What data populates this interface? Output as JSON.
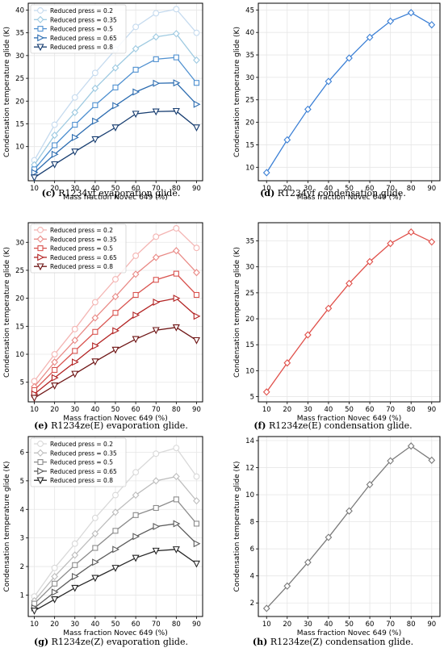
{
  "chart_data": [
    {
      "type": "line",
      "panel": "(c)",
      "caption": {
        "letter": "(c)",
        "text": "R1234yf evaporation glide."
      },
      "xlabel": "Mass fraction Novec 649 (%)",
      "ylabel": "Condensation temperature glide (K)",
      "x": [
        10,
        20,
        30,
        40,
        50,
        60,
        70,
        80,
        90
      ],
      "xlim": [
        7,
        93
      ],
      "ylim": [
        2.5,
        41.5
      ],
      "xticks": [
        10,
        20,
        30,
        40,
        50,
        60,
        70,
        80,
        90
      ],
      "yticks": [
        10,
        15,
        20,
        25,
        30,
        35,
        40
      ],
      "legend": "top-left",
      "grid": true,
      "marker_style": "mixed",
      "series": [
        {
          "name": "Reduced press = 0.2",
          "color": "#c6dbef",
          "marker": "o",
          "values": [
            7.0,
            14.8,
            20.8,
            26.2,
            31.3,
            36.3,
            39.3,
            40.2,
            35.0
          ]
        },
        {
          "name": "Reduced press = 0.35",
          "color": "#9ecae1",
          "marker": "D",
          "values": [
            6.0,
            12.5,
            17.5,
            22.8,
            27.3,
            31.5,
            34.1,
            34.8,
            29.0
          ]
        },
        {
          "name": "Reduced press = 0.5",
          "color": "#4f90d0",
          "marker": "s",
          "values": [
            5.0,
            10.3,
            14.8,
            19.1,
            23.0,
            26.9,
            29.2,
            29.6,
            24.0
          ]
        },
        {
          "name": "Reduced press = 0.65",
          "color": "#2c6cb0",
          "marker": ">",
          "values": [
            4.3,
            8.3,
            12.0,
            15.6,
            19.0,
            22.0,
            23.9,
            24.0,
            19.3
          ]
        },
        {
          "name": "Reduced press = 0.8",
          "color": "#173d70",
          "marker": "v",
          "values": [
            3.2,
            6.1,
            8.9,
            11.6,
            14.2,
            17.2,
            17.7,
            17.8,
            14.2
          ]
        }
      ]
    },
    {
      "type": "line",
      "panel": "(d)",
      "caption": {
        "letter": "(d)",
        "text": "R1234yf condensation glide."
      },
      "xlabel": "Mass fraction Novec 649 (%)",
      "ylabel": "Condensation temperature glide (K)",
      "x": [
        10,
        20,
        30,
        40,
        50,
        60,
        70,
        80,
        90
      ],
      "xlim": [
        6,
        94
      ],
      "ylim": [
        7.0,
        46.5
      ],
      "xticks": [
        10,
        20,
        30,
        40,
        50,
        60,
        70,
        80,
        90
      ],
      "yticks": [
        10,
        15,
        20,
        25,
        30,
        35,
        40,
        45
      ],
      "grid": true,
      "marker_style": "single",
      "series": [
        {
          "color": "#3a7fd5",
          "marker": "D",
          "values": [
            8.8,
            16.1,
            22.9,
            29.1,
            34.3,
            38.9,
            42.5,
            44.4,
            41.7
          ]
        }
      ]
    },
    {
      "type": "line",
      "panel": "(e)",
      "caption": {
        "letter": "(e)",
        "text": "R1234ze(E) evaporation glide."
      },
      "xlabel": "Mass fraction Novec 649 (%)",
      "ylabel": "Condensation temperature glide (K)",
      "x": [
        10,
        20,
        30,
        40,
        50,
        60,
        70,
        80,
        90
      ],
      "xlim": [
        7,
        93
      ],
      "ylim": [
        1.5,
        33.5
      ],
      "xticks": [
        10,
        20,
        30,
        40,
        50,
        60,
        70,
        80,
        90
      ],
      "yticks": [
        5,
        10,
        15,
        20,
        25,
        30
      ],
      "legend": "top-left",
      "grid": true,
      "marker_style": "mixed",
      "series": [
        {
          "name": "Reduced press = 0.2",
          "color": "#f4b5b3",
          "marker": "o",
          "values": [
            5.2,
            10.0,
            14.5,
            19.3,
            23.4,
            27.6,
            31.0,
            32.5,
            29.0
          ]
        },
        {
          "name": "Reduced press = 0.35",
          "color": "#e98a86",
          "marker": "D",
          "values": [
            4.2,
            8.6,
            12.5,
            16.5,
            20.3,
            24.3,
            27.3,
            28.5,
            24.6
          ]
        },
        {
          "name": "Reduced press = 0.5",
          "color": "#d9534f",
          "marker": "s",
          "values": [
            3.6,
            7.2,
            10.6,
            14.0,
            17.4,
            20.6,
            23.3,
            24.4,
            20.6
          ]
        },
        {
          "name": "Reduced press = 0.65",
          "color": "#b22222",
          "marker": ">",
          "values": [
            2.9,
            5.8,
            8.6,
            11.5,
            14.2,
            17.0,
            19.3,
            20.0,
            16.8
          ]
        },
        {
          "name": "Reduced press = 0.8",
          "color": "#6e1414",
          "marker": "v",
          "values": [
            2.2,
            4.4,
            6.5,
            8.7,
            10.8,
            12.7,
            14.3,
            14.8,
            12.5
          ]
        }
      ]
    },
    {
      "type": "line",
      "panel": "(f)",
      "caption": {
        "letter": "(f)",
        "text": "R1234ze(E) condensation glide."
      },
      "xlabel": "Mass fraction Novec 649 (%)",
      "ylabel": "Condensation temperature glide (K)",
      "x": [
        10,
        20,
        30,
        40,
        50,
        60,
        70,
        80,
        90
      ],
      "xlim": [
        6,
        94
      ],
      "ylim": [
        4.0,
        38.5
      ],
      "xticks": [
        10,
        20,
        30,
        40,
        50,
        60,
        70,
        80,
        90
      ],
      "yticks": [
        5,
        10,
        15,
        20,
        25,
        30,
        35
      ],
      "grid": true,
      "marker_style": "single",
      "series": [
        {
          "color": "#e0504a",
          "marker": "D",
          "values": [
            5.9,
            11.5,
            16.9,
            22.0,
            26.8,
            31.0,
            34.5,
            36.7,
            34.8
          ]
        }
      ]
    },
    {
      "type": "line",
      "panel": "(g)",
      "caption": {
        "letter": "(g)",
        "text": "R1234ze(Z) evaporation glide."
      },
      "xlabel": "Mass fraction Novec 649 (%)",
      "ylabel": "Condensation temperature glide (K)",
      "x": [
        10,
        20,
        30,
        40,
        50,
        60,
        70,
        80,
        90
      ],
      "xlim": [
        7,
        93
      ],
      "ylim": [
        0.25,
        6.55
      ],
      "xticks": [
        10,
        20,
        30,
        40,
        50,
        60,
        70,
        80,
        90
      ],
      "yticks": [
        1,
        2,
        3,
        4,
        5,
        6
      ],
      "legend": "top-left",
      "grid": true,
      "marker_style": "mixed",
      "series": [
        {
          "name": "Reduced press = 0.2",
          "color": "#d9d9d9",
          "marker": "o",
          "values": [
            0.95,
            1.95,
            2.8,
            3.7,
            4.5,
            5.3,
            5.95,
            6.15,
            5.15
          ]
        },
        {
          "name": "Reduced press = 0.35",
          "color": "#bdbdbd",
          "marker": "D",
          "values": [
            0.8,
            1.65,
            2.4,
            3.15,
            3.9,
            4.5,
            5.0,
            5.15,
            4.3
          ]
        },
        {
          "name": "Reduced press = 0.5",
          "color": "#8c8c8c",
          "marker": "s",
          "values": [
            0.7,
            1.4,
            2.05,
            2.65,
            3.25,
            3.8,
            4.05,
            4.35,
            3.5
          ]
        },
        {
          "name": "Reduced press = 0.65",
          "color": "#5c5c5c",
          "marker": ">",
          "values": [
            0.55,
            1.1,
            1.65,
            2.15,
            2.6,
            3.05,
            3.4,
            3.5,
            2.8
          ]
        },
        {
          "name": "Reduced press = 0.8",
          "color": "#262626",
          "marker": "v",
          "values": [
            0.45,
            0.85,
            1.25,
            1.6,
            1.95,
            2.3,
            2.55,
            2.6,
            2.1
          ]
        }
      ]
    },
    {
      "type": "line",
      "panel": "(h)",
      "caption": {
        "letter": "(h)",
        "text": "R1234ze(Z) condensation glide."
      },
      "xlabel": "Mass fraction Novec 649 (%)",
      "ylabel": "Condensation temperature glide (K)",
      "x": [
        10,
        20,
        30,
        40,
        50,
        60,
        70,
        80,
        90
      ],
      "xlim": [
        6,
        94
      ],
      "ylim": [
        1.0,
        14.3
      ],
      "xticks": [
        10,
        20,
        30,
        40,
        50,
        60,
        70,
        80,
        90
      ],
      "yticks": [
        2,
        4,
        6,
        8,
        10,
        12,
        14
      ],
      "grid": true,
      "marker_style": "single",
      "series": [
        {
          "color": "#7a7a7a",
          "marker": "D",
          "values": [
            1.6,
            3.25,
            5.0,
            6.85,
            8.8,
            10.75,
            12.5,
            13.6,
            12.55
          ]
        }
      ]
    }
  ]
}
